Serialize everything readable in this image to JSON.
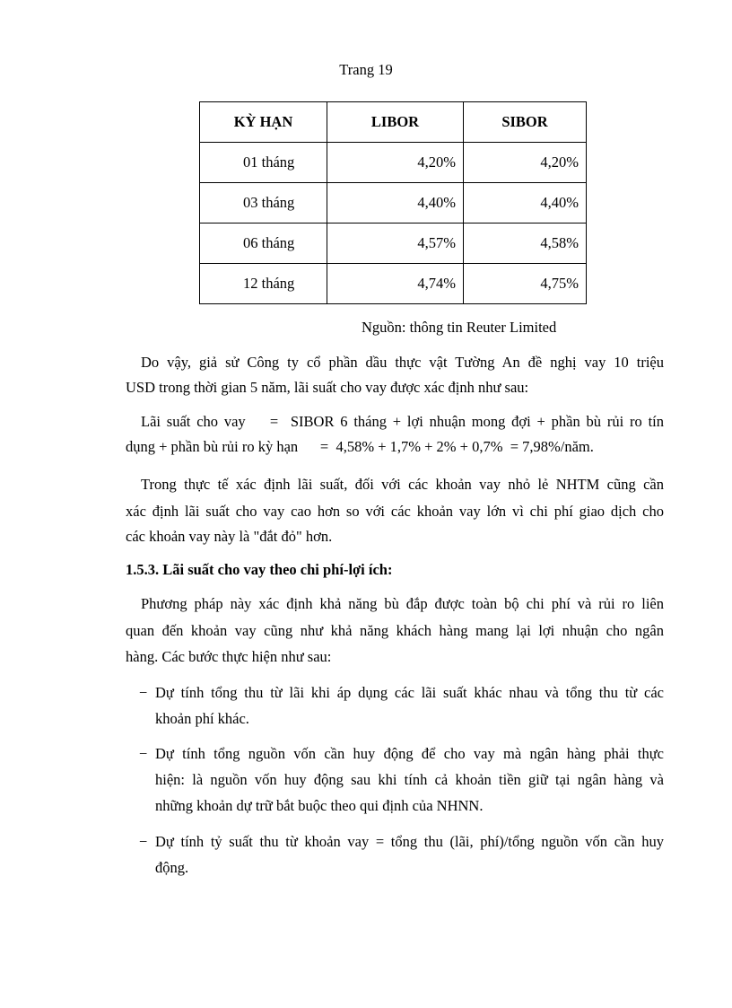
{
  "header": {
    "page_label": "Trang 19"
  },
  "table": {
    "headers": [
      "KỲ HẠN",
      "LIBOR",
      "SIBOR"
    ],
    "rows": [
      [
        "01 tháng",
        "4,20%",
        "4,20%"
      ],
      [
        "03 tháng",
        "4,40%",
        "4,40%"
      ],
      [
        "06 tháng",
        "4,57%",
        "4,58%"
      ],
      [
        "12 tháng",
        "4,74%",
        "4,75%"
      ]
    ],
    "source": "Nguồn: thông tin Reuter Limited"
  },
  "paragraphs": [
    [
      "Do vậy, giả sử Công ty cổ phần dầu thực vật Tường An đề nghị vay 10 triệu",
      "USD trong thời gian 5 năm, lãi suất cho vay được xác định như sau:"
    ],
    [
      "Lãi suất cho vay    =  SIBOR 6 tháng + lợi nhuận mong đợi + phần bù rủi ro tín",
      "dụng + phần bù rủi ro kỳ hạn      =  4,58% + 1,7% + 2% + 0,7%  = 7,98%/năm."
    ],
    [
      "Trong thực tế xác định lãi suất, đối với các khoản vay nhỏ lẻ NHTM cũng cần",
      "xác định lãi suất cho vay cao hơn so với các khoản vay lớn vì chi phí giao dịch cho",
      "các khoản vay này là \"đắt đỏ\" hơn."
    ]
  ],
  "section_heading": "1.5.3. Lãi suất cho vay theo chi phí-lợi ích:",
  "intro": [
    "Phương pháp này xác định khả năng bù đắp được toàn bộ chi phí và rủi ro liên",
    "quan đến khoản vay cũng như khả năng khách hàng mang lại lợi nhuận cho ngân",
    "hàng. Các bước thực hiện như sau:"
  ],
  "bullet_marker": "−",
  "bullets": [
    [
      "Dự tính tổng thu từ lãi khi áp dụng các lãi suất khác nhau và tổng thu từ các",
      "khoản phí khác."
    ],
    [
      "Dự tính tổng nguồn vốn cần huy động để cho vay mà ngân hàng phải thực",
      "hiện: là nguồn vốn huy động sau khi tính cả khoản tiền giữ tại ngân hàng và",
      "những khoản dự trữ bắt buộc theo qui định của NHNN."
    ],
    [
      "Dự tính tỷ suất thu từ khoản vay = tổng thu (lãi, phí)/tổng nguồn vốn cần huy",
      "động."
    ]
  ]
}
